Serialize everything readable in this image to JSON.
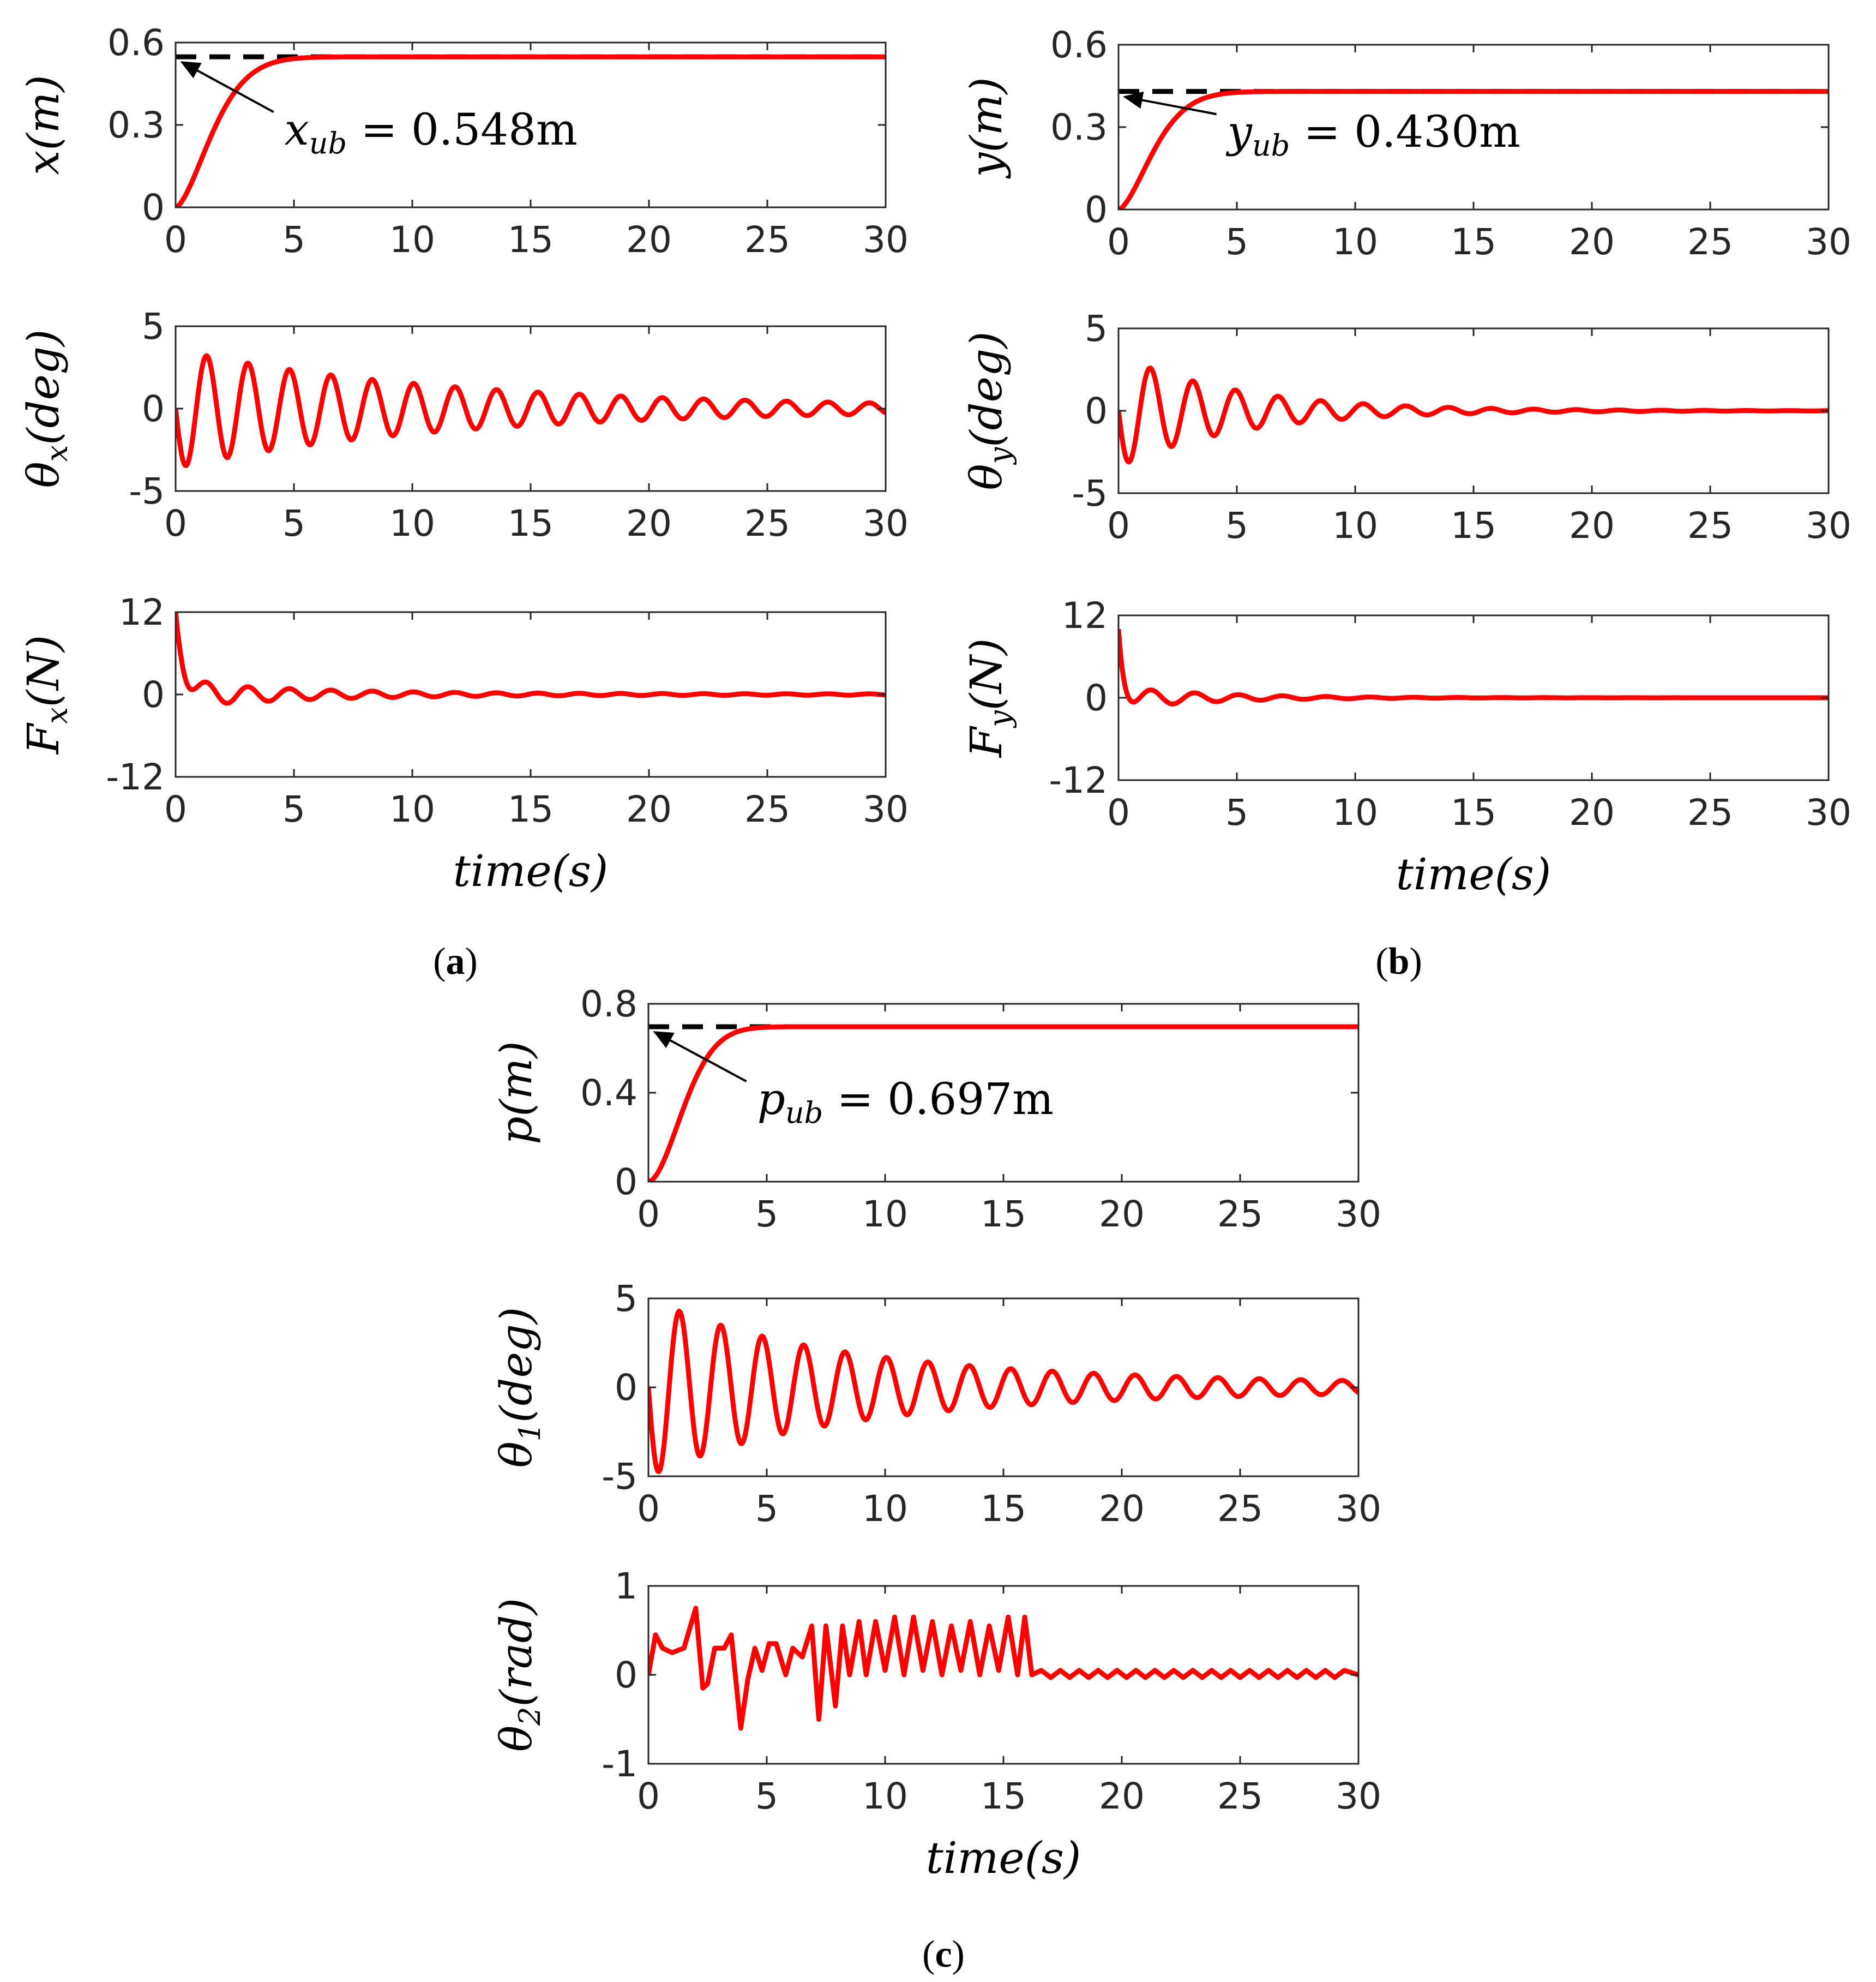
{
  "colors": {
    "signal": "#ff0000",
    "reference": "#000000",
    "axis": "#262626"
  },
  "chart_data": [
    {
      "type": "line",
      "group": "a",
      "title": "",
      "xlabel": "",
      "ylabel": "x(m)",
      "ylabel_parts": {
        "base": "x",
        "sub": "",
        "unit": "(m)"
      },
      "xlim": [
        0,
        30
      ],
      "ylim": [
        0,
        0.6
      ],
      "xticks": [
        0,
        5,
        10,
        15,
        20,
        25,
        30
      ],
      "xtick_labels": [
        "0",
        "5",
        "10",
        "15",
        "20",
        "25",
        "30"
      ],
      "yticks": [
        0,
        0.3,
        0.6
      ],
      "ytick_labels": [
        "0",
        "0.3",
        "0.6"
      ],
      "reference": {
        "value": 0.548,
        "style": "dashed"
      },
      "annotation": {
        "base": "x",
        "sub": "ub",
        "rest": " = 0.548m",
        "points_to": [
          0,
          0.548
        ]
      },
      "series": [
        {
          "name": "x",
          "kind": "exp",
          "final": 0.548,
          "tau": 2.1,
          "shape": 1.6
        }
      ]
    },
    {
      "type": "line",
      "group": "a",
      "title": "",
      "xlabel": "",
      "ylabel": "θx(deg)",
      "ylabel_parts": {
        "base": "θ",
        "sub": "x",
        "unit": "(deg)"
      },
      "xlim": [
        0,
        30
      ],
      "ylim": [
        -5,
        5
      ],
      "xticks": [
        0,
        5,
        10,
        15,
        20,
        25,
        30
      ],
      "xtick_labels": [
        "0",
        "5",
        "10",
        "15",
        "20",
        "25",
        "30"
      ],
      "yticks": [
        -5,
        0,
        5
      ],
      "ytick_labels": [
        "-5",
        "0",
        "5"
      ],
      "series": [
        {
          "name": "theta_x",
          "kind": "osc",
          "amp": 3.6,
          "period": 1.75,
          "decay": 0.1,
          "floor": 0.25
        }
      ]
    },
    {
      "type": "line",
      "group": "a",
      "title": "",
      "xlabel": "time(s)",
      "ylabel": "Fx(N)",
      "ylabel_parts": {
        "base": "F",
        "sub": "x",
        "unit": "(N)"
      },
      "xlim": [
        0,
        30
      ],
      "ylim": [
        -12,
        12
      ],
      "xticks": [
        0,
        5,
        10,
        15,
        20,
        25,
        30
      ],
      "xtick_labels": [
        "0",
        "5",
        "10",
        "15",
        "20",
        "25",
        "30"
      ],
      "yticks": [
        -12,
        0,
        12
      ],
      "ytick_labels": [
        "-12",
        "0",
        "12"
      ],
      "series": [
        {
          "name": "F_x",
          "kind": "force",
          "peak": 12,
          "fall": 0.35,
          "amp": 1.8,
          "period": 1.75,
          "decay": 0.18,
          "floor": 0.05
        }
      ]
    },
    {
      "type": "line",
      "group": "b",
      "title": "",
      "xlabel": "",
      "ylabel": "y(m)",
      "ylabel_parts": {
        "base": "y",
        "sub": "",
        "unit": "(m)"
      },
      "xlim": [
        0,
        30
      ],
      "ylim": [
        0,
        0.6
      ],
      "xticks": [
        0,
        5,
        10,
        15,
        20,
        25,
        30
      ],
      "xtick_labels": [
        "0",
        "5",
        "10",
        "15",
        "20",
        "25",
        "30"
      ],
      "yticks": [
        0,
        0.3,
        0.6
      ],
      "ytick_labels": [
        "0",
        "0.3",
        "0.6"
      ],
      "reference": {
        "value": 0.43,
        "style": "dashed"
      },
      "annotation": {
        "base": "y",
        "sub": "ub",
        "rest": " = 0.430m",
        "points_to": [
          0,
          0.43
        ]
      },
      "series": [
        {
          "name": "y",
          "kind": "exp",
          "final": 0.43,
          "tau": 2.0,
          "shape": 1.6
        }
      ]
    },
    {
      "type": "line",
      "group": "b",
      "title": "",
      "xlabel": "",
      "ylabel": "θy(deg)",
      "ylabel_parts": {
        "base": "θ",
        "sub": "y",
        "unit": "(deg)"
      },
      "xlim": [
        0,
        30
      ],
      "ylim": [
        -5,
        5
      ],
      "xticks": [
        0,
        5,
        10,
        15,
        20,
        25,
        30
      ],
      "xtick_labels": [
        "0",
        "5",
        "10",
        "15",
        "20",
        "25",
        "30"
      ],
      "yticks": [
        -5,
        0,
        5
      ],
      "ytick_labels": [
        "-5",
        "0",
        "5"
      ],
      "series": [
        {
          "name": "theta_y",
          "kind": "osc",
          "amp": 3.4,
          "period": 1.8,
          "decay": 0.2,
          "floor": 0.0
        }
      ]
    },
    {
      "type": "line",
      "group": "b",
      "title": "",
      "xlabel": "time(s)",
      "ylabel": "Fy(N)",
      "ylabel_parts": {
        "base": "F",
        "sub": "y",
        "unit": "(N)"
      },
      "xlim": [
        0,
        30
      ],
      "ylim": [
        -12,
        12
      ],
      "xticks": [
        0,
        5,
        10,
        15,
        20,
        25,
        30
      ],
      "xtick_labels": [
        "0",
        "5",
        "10",
        "15",
        "20",
        "25",
        "30"
      ],
      "yticks": [
        -12,
        0,
        12
      ],
      "ytick_labels": [
        "-12",
        "0",
        "12"
      ],
      "series": [
        {
          "name": "F_y",
          "kind": "force",
          "peak": 10,
          "fall": 0.2,
          "amp": 1.6,
          "period": 1.85,
          "decay": 0.25,
          "floor": 0.0
        }
      ]
    },
    {
      "type": "line",
      "group": "c",
      "title": "",
      "xlabel": "",
      "ylabel": "p(m)",
      "ylabel_parts": {
        "base": "p",
        "sub": "",
        "unit": "(m)"
      },
      "xlim": [
        0,
        30
      ],
      "ylim": [
        0,
        0.8
      ],
      "xticks": [
        0,
        5,
        10,
        15,
        20,
        25,
        30
      ],
      "xtick_labels": [
        "0",
        "5",
        "10",
        "15",
        "20",
        "25",
        "30"
      ],
      "yticks": [
        0,
        0.4,
        0.8
      ],
      "ytick_labels": [
        "0",
        "0.4",
        "0.8"
      ],
      "reference": {
        "value": 0.697,
        "style": "dashed"
      },
      "annotation": {
        "base": "p",
        "sub": "ub",
        "rest": " = 0.697m",
        "points_to": [
          0,
          0.697
        ]
      },
      "series": [
        {
          "name": "p",
          "kind": "exp",
          "final": 0.697,
          "tau": 2.0,
          "shape": 1.8
        }
      ]
    },
    {
      "type": "line",
      "group": "c",
      "title": "",
      "xlabel": "",
      "ylabel": "θ1(deg)",
      "ylabel_parts": {
        "base": "θ",
        "sub": "1",
        "unit": "(deg)"
      },
      "xlim": [
        0,
        30
      ],
      "ylim": [
        -5,
        5
      ],
      "xticks": [
        0,
        5,
        10,
        15,
        20,
        25,
        30
      ],
      "xtick_labels": [
        "0",
        "5",
        "10",
        "15",
        "20",
        "25",
        "30"
      ],
      "yticks": [
        -5,
        0,
        5
      ],
      "ytick_labels": [
        "-5",
        "0",
        "5"
      ],
      "series": [
        {
          "name": "theta_1",
          "kind": "osc",
          "amp": 5.0,
          "period": 1.75,
          "decay": 0.15,
          "floor": 0.3
        }
      ]
    },
    {
      "type": "line",
      "group": "c",
      "title": "",
      "xlabel": "time(s)",
      "ylabel": "θ2(rad)",
      "ylabel_parts": {
        "base": "θ",
        "sub": "2",
        "unit": "(rad)"
      },
      "xlim": [
        0,
        30
      ],
      "ylim": [
        -1,
        1
      ],
      "xticks": [
        0,
        5,
        10,
        15,
        20,
        25,
        30
      ],
      "xtick_labels": [
        "0",
        "5",
        "10",
        "15",
        "20",
        "25",
        "30"
      ],
      "yticks": [
        -1,
        0,
        1
      ],
      "ytick_labels": [
        "-1",
        "0",
        "1"
      ],
      "series": [
        {
          "name": "theta_2",
          "kind": "points",
          "x": [
            0,
            0.3,
            0.6,
            1.0,
            1.5,
            2.0,
            2.3,
            2.5,
            2.8,
            3.0,
            3.2,
            3.5,
            3.9,
            4.2,
            4.5,
            4.8,
            5.1,
            5.4,
            5.8,
            6.1,
            6.5,
            6.9,
            7.2,
            7.5,
            7.9,
            8.2,
            8.5,
            8.9,
            9.2,
            9.6,
            10.0,
            10.4,
            10.8,
            11.2,
            11.6,
            12.0,
            12.4,
            12.8,
            13.2,
            13.6,
            14.0,
            14.4,
            14.8,
            15.2,
            15.6,
            15.9,
            16.2,
            16.6,
            17.0,
            17.4,
            17.8,
            18.2,
            18.6,
            19.0,
            19.4,
            19.8,
            20.2,
            20.6,
            21.0,
            21.4,
            21.8,
            22.2,
            22.6,
            23.0,
            23.4,
            23.8,
            24.2,
            24.6,
            25.0,
            25.4,
            25.8,
            26.2,
            26.6,
            27.0,
            27.4,
            27.8,
            28.2,
            28.6,
            29.0,
            29.4,
            30.0
          ],
          "y": [
            0,
            0.45,
            0.3,
            0.25,
            0.3,
            0.75,
            -0.15,
            -0.1,
            0.3,
            0.3,
            0.3,
            0.45,
            -0.6,
            -0.05,
            0.3,
            0.05,
            0.35,
            0.35,
            0.0,
            0.3,
            0.2,
            0.55,
            -0.5,
            0.55,
            -0.35,
            0.55,
            0.0,
            0.6,
            0.0,
            0.6,
            0.05,
            0.65,
            0.0,
            0.65,
            0.05,
            0.6,
            0.0,
            0.55,
            0.05,
            0.6,
            0.0,
            0.55,
            0.05,
            0.65,
            0.0,
            0.65,
            0.0,
            0.05,
            -0.03,
            0.05,
            -0.03,
            0.05,
            -0.03,
            0.05,
            -0.03,
            0.05,
            -0.03,
            0.05,
            -0.03,
            0.05,
            -0.03,
            0.05,
            -0.03,
            0.05,
            -0.03,
            0.05,
            -0.03,
            0.05,
            -0.03,
            0.05,
            -0.03,
            0.05,
            -0.03,
            0.05,
            -0.03,
            0.05,
            -0.03,
            0.05,
            -0.03,
            0.05,
            0.0
          ]
        }
      ]
    }
  ],
  "captions": [
    {
      "open": "(",
      "letter": "a",
      "close": ")"
    },
    {
      "open": "(",
      "letter": "b",
      "close": ")"
    },
    {
      "open": "(",
      "letter": "c",
      "close": ")"
    }
  ]
}
